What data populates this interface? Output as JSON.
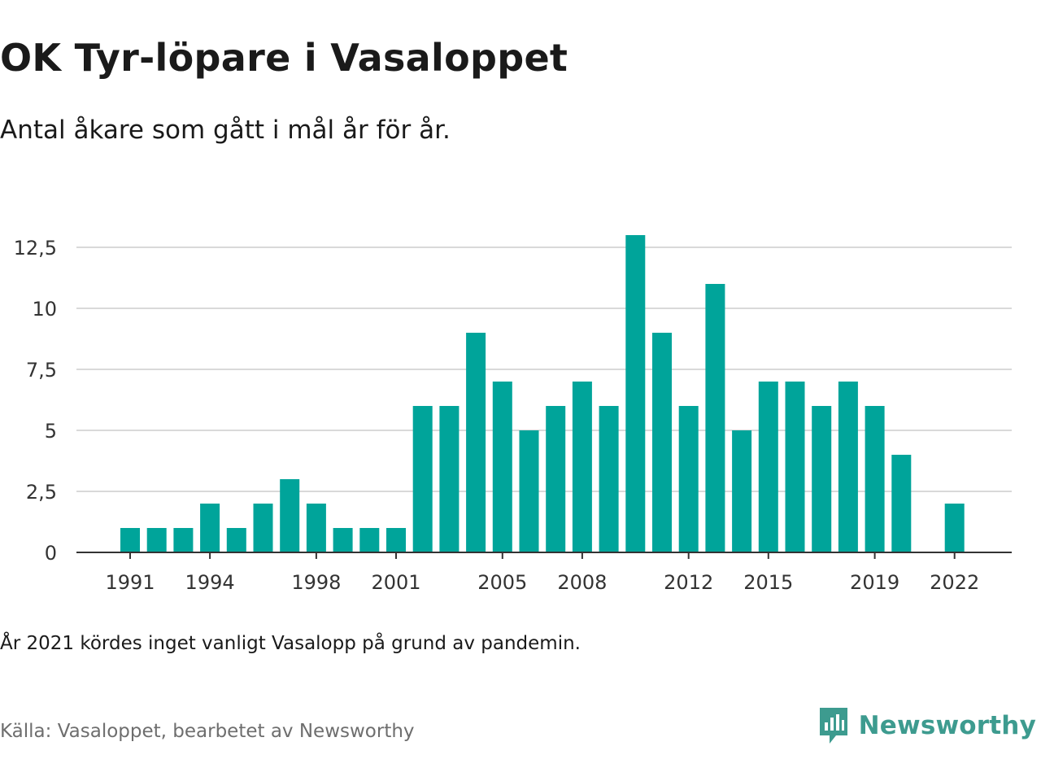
{
  "title": "OK Tyr-löpare i Vasaloppet",
  "subtitle": "Antal åkare som gått i mål år för år.",
  "note": "År 2021 kördes inget vanligt Vasalopp på grund av pandemin.",
  "source": "Källa: Vasaloppet, bearbetet av Newsworthy",
  "brand": {
    "name": "Newsworthy",
    "icon": "newsworthy-logo-icon",
    "color": "#3d9b8f"
  },
  "colors": {
    "bar": "#00a49a",
    "grid": "#d9d9d9",
    "axis": "#333333",
    "text": "#333333"
  },
  "chart_data": {
    "type": "bar",
    "x": [
      1991,
      1992,
      1993,
      1994,
      1995,
      1996,
      1997,
      1998,
      1999,
      2000,
      2001,
      2002,
      2003,
      2004,
      2005,
      2006,
      2007,
      2008,
      2009,
      2010,
      2011,
      2012,
      2013,
      2014,
      2015,
      2016,
      2017,
      2018,
      2019,
      2020,
      2021,
      2022
    ],
    "values": [
      1,
      1,
      1,
      2,
      1,
      2,
      3,
      2,
      1,
      1,
      1,
      6,
      6,
      9,
      7,
      5,
      6,
      7,
      6,
      13,
      9,
      6,
      11,
      5,
      7,
      7,
      6,
      7,
      6,
      4,
      0,
      2
    ],
    "x_tick_labels": [
      "1991",
      "1994",
      "1998",
      "2001",
      "2005",
      "2008",
      "2012",
      "2015",
      "2019",
      "2022"
    ],
    "y_ticks": [
      0,
      2.5,
      5,
      7.5,
      10,
      12.5
    ],
    "y_tick_labels": [
      "0",
      "2,5",
      "5",
      "7,5",
      "10",
      "12,5"
    ],
    "ylim": [
      0,
      13
    ],
    "xlabel": "",
    "ylabel": "",
    "grid": true
  }
}
